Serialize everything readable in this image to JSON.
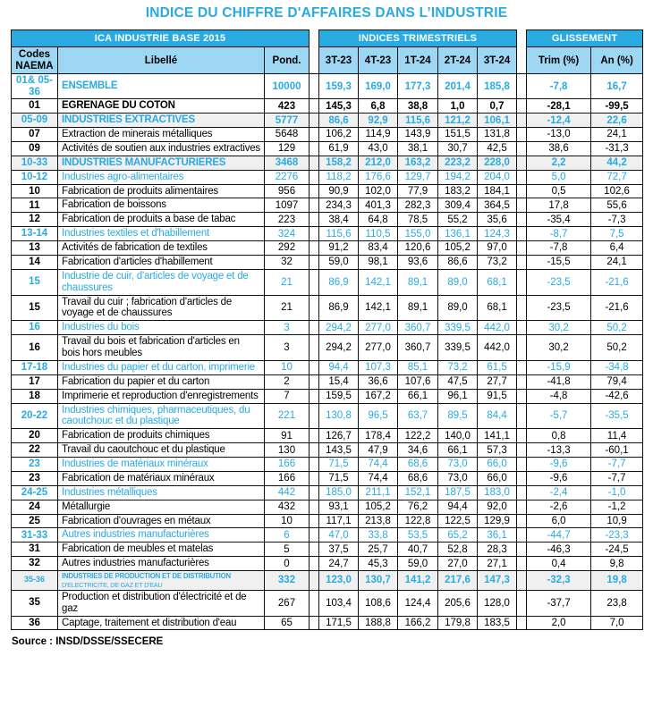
{
  "title": "INDICE DU CHIFFRE D'AFFAIRES DANS L’INDUSTRIE",
  "source": "Source : INSD/DSSE/SSECERE",
  "colors": {
    "accent": "#29ABE2",
    "header_light": "#9ED7F3",
    "section_bg": "#F0F0F0"
  },
  "table": {
    "groups": {
      "left": "ICA INDUSTRIE BASE 2015",
      "middle": "INDICES TRIMESTRIELS",
      "right": "GLISSEMENT"
    },
    "columns": {
      "code": "Codes\nNAEMA",
      "label": "Libellé",
      "pond": "Pond.",
      "quarters": [
        "3T-23",
        "4T-23",
        "1T-24",
        "2T-24",
        "3T-24"
      ],
      "trim": "Trim (%)",
      "an": "An (%)"
    },
    "rows": [
      {
        "type": "ensemble",
        "code": "01& 05-\n36",
        "label": "ENSEMBLE",
        "pond": "10000",
        "v": [
          "159,3",
          "169,0",
          "177,3",
          "201,4",
          "185,8"
        ],
        "trim": "-7,8",
        "an": "16,7"
      },
      {
        "type": "black-section",
        "code": "01",
        "label": "EGRENAGE DU COTON",
        "pond": "423",
        "v": [
          "145,3",
          "6,8",
          "38,8",
          "1,0",
          "0,7"
        ],
        "trim": "-28,1",
        "an": "-99,5"
      },
      {
        "type": "gray-section",
        "code": "05-09",
        "label": "INDUSTRIES EXTRACTIVES",
        "pond": "5777",
        "v": [
          "86,6",
          "92,9",
          "115,6",
          "121,2",
          "106,1"
        ],
        "trim": "-12,4",
        "an": "22,6"
      },
      {
        "type": "normal",
        "code": "07",
        "label": "Extraction de minerais métalliques",
        "pond": "5648",
        "v": [
          "106,2",
          "114,9",
          "143,9",
          "151,5",
          "131,8"
        ],
        "trim": "-13,0",
        "an": "24,1"
      },
      {
        "type": "normal",
        "code": "09",
        "label": "Activités de soutien aux industries extractives",
        "pond": "129",
        "v": [
          "61,9",
          "43,0",
          "38,1",
          "30,7",
          "42,5"
        ],
        "trim": "38,6",
        "an": "-31,3"
      },
      {
        "type": "gray-section",
        "code": "10-33",
        "label": "INDUSTRIES MANUFACTURIERES",
        "pond": "3468",
        "v": [
          "158,2",
          "212,0",
          "163,2",
          "223,2",
          "228,0"
        ],
        "trim": "2,2",
        "an": "44,2"
      },
      {
        "type": "sub",
        "code": "10-12",
        "label": "Industries agro-alimentaires",
        "pond": "2276",
        "v": [
          "118,2",
          "176,6",
          "129,7",
          "194,2",
          "204,0"
        ],
        "trim": "5,0",
        "an": "72,7"
      },
      {
        "type": "normal",
        "code": "10",
        "label": "Fabrication de produits alimentaires",
        "pond": "956",
        "v": [
          "90,9",
          "102,0",
          "77,9",
          "183,2",
          "184,1"
        ],
        "trim": "0,5",
        "an": "102,6"
      },
      {
        "type": "normal",
        "code": "11",
        "label": "Fabrication de boissons",
        "pond": "1097",
        "v": [
          "234,3",
          "401,3",
          "282,3",
          "309,4",
          "364,5"
        ],
        "trim": "17,8",
        "an": "55,6"
      },
      {
        "type": "normal",
        "code": "12",
        "label": "Fabrication de produits a base de tabac",
        "pond": "223",
        "v": [
          "38,4",
          "64,8",
          "78,5",
          "55,2",
          "35,6"
        ],
        "trim": "-35,4",
        "an": "-7,3"
      },
      {
        "type": "sub",
        "code": "13-14",
        "label": "Industries textiles et d'habillement",
        "pond": "324",
        "v": [
          "115,6",
          "110,5",
          "155,0",
          "136,1",
          "124,3"
        ],
        "trim": "-8,7",
        "an": "7,5"
      },
      {
        "type": "normal",
        "code": "13",
        "label": "Activités de fabrication de textiles",
        "pond": "292",
        "v": [
          "91,2",
          "83,4",
          "120,6",
          "105,2",
          "97,0"
        ],
        "trim": "-7,8",
        "an": "6,4"
      },
      {
        "type": "normal",
        "code": "14",
        "label": "Fabrication d'articles d'habillement",
        "pond": "32",
        "v": [
          "59,0",
          "98,1",
          "93,6",
          "86,6",
          "73,2"
        ],
        "trim": "-15,5",
        "an": "24,1"
      },
      {
        "type": "sub",
        "code": "15",
        "label": "Industrie de cuir, d'articles de voyage et de chaussures",
        "pond": "21",
        "v": [
          "86,9",
          "142,1",
          "89,1",
          "89,0",
          "68,1"
        ],
        "trim": "-23,5",
        "an": "-21,6"
      },
      {
        "type": "normal",
        "code": "15",
        "label": "Travail du cuir ; fabrication d'articles de voyage et de chaussures",
        "pond": "21",
        "v": [
          "86,9",
          "142,1",
          "89,1",
          "89,0",
          "68,1"
        ],
        "trim": "-23,5",
        "an": "-21,6"
      },
      {
        "type": "sub",
        "code": "16",
        "label": "Industries du bois",
        "pond": "3",
        "v": [
          "294,2",
          "277,0",
          "360,7",
          "339,5",
          "442,0"
        ],
        "trim": "30,2",
        "an": "50,2"
      },
      {
        "type": "normal",
        "code": "16",
        "label": "Travail du bois et fabrication d'articles en bois hors meubles",
        "pond": "3",
        "v": [
          "294,2",
          "277,0",
          "360,7",
          "339,5",
          "442,0"
        ],
        "trim": "30,2",
        "an": "50,2"
      },
      {
        "type": "sub",
        "code": "17-18",
        "label": "Industries du papier et du carton, imprimerie",
        "pond": "10",
        "v": [
          "94,4",
          "107,3",
          "85,1",
          "73,2",
          "61,5"
        ],
        "trim": "-15,9",
        "an": "-34,8"
      },
      {
        "type": "normal",
        "code": "17",
        "label": "Fabrication du papier et du carton",
        "pond": "2",
        "v": [
          "15,4",
          "36,6",
          "107,6",
          "47,5",
          "27,7"
        ],
        "trim": "-41,8",
        "an": "79,4"
      },
      {
        "type": "normal",
        "code": "18",
        "label": "Imprimerie et reproduction d'enregistrements",
        "pond": "7",
        "v": [
          "159,5",
          "167,2",
          "66,1",
          "96,1",
          "91,5"
        ],
        "trim": "-4,8",
        "an": "-42,6"
      },
      {
        "type": "sub",
        "code": "20-22",
        "label": "Industries chimiques, pharmaceutiques, du caoutchouc et du plastique",
        "pond": "221",
        "v": [
          "130,8",
          "96,5",
          "63,7",
          "89,5",
          "84,4"
        ],
        "trim": "-5,7",
        "an": "-35,5"
      },
      {
        "type": "normal",
        "code": "20",
        "label": "Fabrication de produits chimiques",
        "pond": "91",
        "v": [
          "126,7",
          "178,4",
          "122,2",
          "140,0",
          "141,1"
        ],
        "trim": "0,8",
        "an": "11,4"
      },
      {
        "type": "normal",
        "code": "22",
        "label": "Travail du caoutchouc et du plastique",
        "pond": "130",
        "v": [
          "143,5",
          "47,9",
          "34,6",
          "66,1",
          "57,3"
        ],
        "trim": "-13,3",
        "an": "-60,1"
      },
      {
        "type": "sub",
        "code": "23",
        "label": "Industries de matériaux minéraux",
        "pond": "166",
        "v": [
          "71,5",
          "74,4",
          "68,6",
          "73,0",
          "66,0"
        ],
        "trim": "-9,6",
        "an": "-7,7"
      },
      {
        "type": "normal",
        "code": "23",
        "label": "Fabrication de matériaux minéraux",
        "pond": "166",
        "v": [
          "71,5",
          "74,4",
          "68,6",
          "73,0",
          "66,0"
        ],
        "trim": "-9,6",
        "an": "-7,7"
      },
      {
        "type": "sub",
        "code": "24-25",
        "label": "Industries métalliques",
        "pond": "442",
        "v": [
          "185,0",
          "211,1",
          "152,1",
          "187,5",
          "183,0"
        ],
        "trim": "-2,4",
        "an": "-1,0"
      },
      {
        "type": "normal",
        "code": "24",
        "label": "Métallurgie",
        "pond": "432",
        "v": [
          "93,1",
          "105,2",
          "76,2",
          "94,4",
          "92,0"
        ],
        "trim": "-2,6",
        "an": "-1,2"
      },
      {
        "type": "normal",
        "code": "25",
        "label": "Fabrication d'ouvrages en métaux",
        "pond": "10",
        "v": [
          "117,1",
          "213,8",
          "122,8",
          "122,5",
          "129,9"
        ],
        "trim": "6,0",
        "an": "10,9"
      },
      {
        "type": "sub",
        "code": "31-33",
        "label": "Autres industries manufacturières",
        "pond": "6",
        "v": [
          "47,0",
          "33,8",
          "53,5",
          "65,2",
          "36,1"
        ],
        "trim": "-44,7",
        "an": "-23,3"
      },
      {
        "type": "normal",
        "code": "31",
        "label": "Fabrication de meubles et matelas",
        "pond": "5",
        "v": [
          "37,5",
          "25,7",
          "40,7",
          "52,8",
          "28,3"
        ],
        "trim": "-46,3",
        "an": "-24,5"
      },
      {
        "type": "normal",
        "code": "32",
        "label": "Autres industries manufacturières",
        "pond": "0",
        "v": [
          "24,7",
          "45,3",
          "59,0",
          "27,0",
          "27,1"
        ],
        "trim": "0,4",
        "an": "9,8"
      },
      {
        "type": "gray-section-small",
        "code": "35-36",
        "label": "INDUSTRIES DE PRODUCTION ET DE DISTRIBUTION",
        "label2": "D'ELECTRICITE, DE GAZ ET D'EAU",
        "pond": "332",
        "v": [
          "123,0",
          "130,7",
          "141,2",
          "217,6",
          "147,3"
        ],
        "trim": "-32,3",
        "an": "19,8"
      },
      {
        "type": "normal",
        "code": "35",
        "label": "Production et distribution d'électricité et de gaz",
        "pond": "267",
        "v": [
          "103,4",
          "108,6",
          "124,4",
          "205,6",
          "128,0"
        ],
        "trim": "-37,7",
        "an": "23,8"
      },
      {
        "type": "normal",
        "code": "36",
        "label": "Captage, traitement et distribution d'eau",
        "pond": "65",
        "v": [
          "171,5",
          "188,8",
          "166,2",
          "179,8",
          "183,5"
        ],
        "trim": "2,0",
        "an": "7,0"
      }
    ]
  }
}
